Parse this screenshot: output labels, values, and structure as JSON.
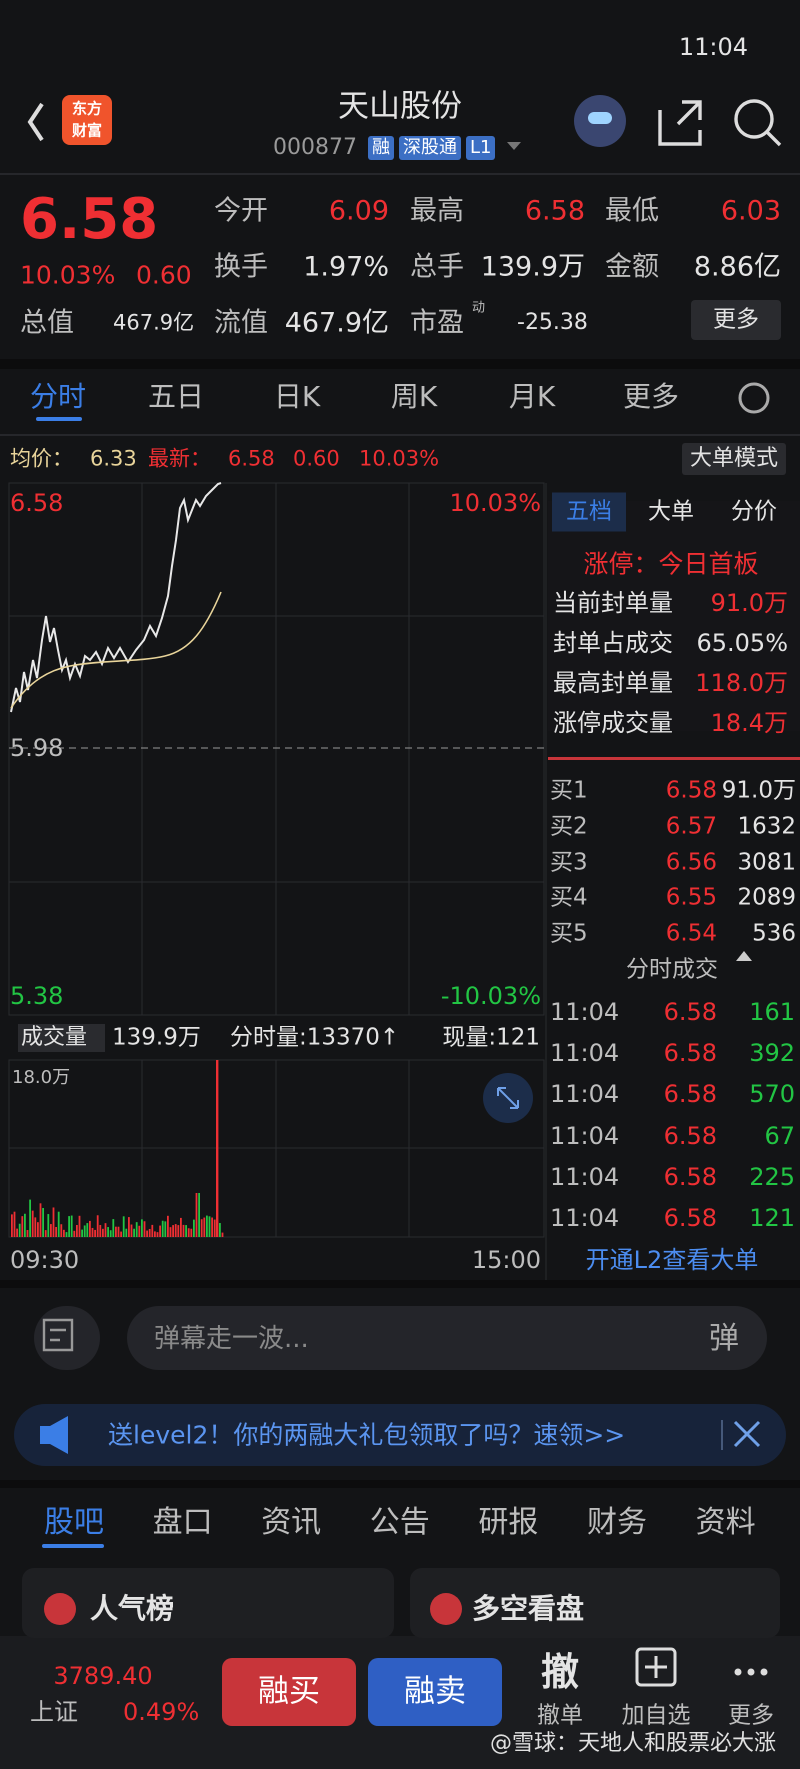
{
  "status": {
    "time": "11:04"
  },
  "header": {
    "logo": [
      "东方",
      "财富"
    ],
    "name": "天山股份",
    "code": "000877",
    "tags": [
      "融",
      "深股通",
      "L1"
    ]
  },
  "quote": {
    "price": "6.58",
    "pct": "10.03%",
    "change": "0.60",
    "fields": [
      {
        "label": "今开",
        "value": "6.09"
      },
      {
        "label": "最高",
        "value": "6.58"
      },
      {
        "label": "最低",
        "value": "6.03"
      },
      {
        "label": "换手",
        "value": "1.97%"
      },
      {
        "label": "总手",
        "value": "139.9万"
      },
      {
        "label": "金额",
        "value": "8.86亿"
      },
      {
        "label": "总值",
        "value": "467.9亿"
      },
      {
        "label": "流值",
        "value": "467.9亿"
      },
      {
        "label": "市盈",
        "sup": "动",
        "value": "-25.38"
      }
    ],
    "more": "更多"
  },
  "tabs": [
    "分时",
    "五日",
    "日K",
    "周K",
    "月K",
    "更多"
  ],
  "infobar": {
    "avg_label": "均价：",
    "avg": "6.33",
    "last_label": "最新：",
    "last": "6.58",
    "change": "0.60",
    "pct": "10.03%",
    "mode": "大单模式"
  },
  "chart": {
    "high": "6.58",
    "high_pct": "10.03%",
    "mid": "5.98",
    "low": "5.38",
    "low_pct": "-10.03%",
    "vol_label": "成交量",
    "vol_total": "139.9万",
    "vol_tick": "分时量:13370↑",
    "vol_now": "现量:121",
    "vol_max": "18.0万",
    "start": "09:30",
    "end": "15:00"
  },
  "side": {
    "tabs": [
      "五档",
      "大单",
      "分价"
    ],
    "limit": "涨停：今日首板",
    "stats": [
      {
        "label": "当前封单量",
        "value": "91.0万"
      },
      {
        "label": "封单占成交",
        "value": "65.05%"
      },
      {
        "label": "最高封单量",
        "value": "118.0万"
      },
      {
        "label": "涨停成交量",
        "value": "18.4万"
      }
    ],
    "bids": [
      {
        "label": "买1",
        "price": "6.58",
        "vol": "91.0万"
      },
      {
        "label": "买2",
        "price": "6.57",
        "vol": "1632"
      },
      {
        "label": "买3",
        "price": "6.56",
        "vol": "3081"
      },
      {
        "label": "买4",
        "price": "6.55",
        "vol": "2089"
      },
      {
        "label": "买5",
        "price": "6.54",
        "vol": "536"
      }
    ],
    "trades_title": "分时成交",
    "trades": [
      {
        "time": "11:04",
        "price": "6.58",
        "vol": "161"
      },
      {
        "time": "11:04",
        "price": "6.58",
        "vol": "392"
      },
      {
        "time": "11:04",
        "price": "6.58",
        "vol": "570"
      },
      {
        "time": "11:04",
        "price": "6.58",
        "vol": "67"
      },
      {
        "time": "11:04",
        "price": "6.58",
        "vol": "225"
      },
      {
        "time": "11:04",
        "price": "6.58",
        "vol": "121"
      }
    ],
    "l2": "开通L2查看大单"
  },
  "comment": {
    "placeholder": "弹幕走一波...",
    "button": "弹"
  },
  "banner": "送level2！你的两融大礼包领取了吗？速领>>",
  "bottom_tabs": [
    "股吧",
    "盘口",
    "资讯",
    "公告",
    "研报",
    "财务",
    "资料"
  ],
  "cards": [
    "人气榜",
    "多空看盘"
  ],
  "footer": {
    "index_value": "3789.40",
    "index_name": "上证",
    "index_pct": "0.49%",
    "buy": "融买",
    "sell": "融卖",
    "cancel_icon": "撤",
    "cancel": "撤单",
    "add": "加自选",
    "more": "更多",
    "watermark": "@雪球：天地人和股票必大涨"
  }
}
